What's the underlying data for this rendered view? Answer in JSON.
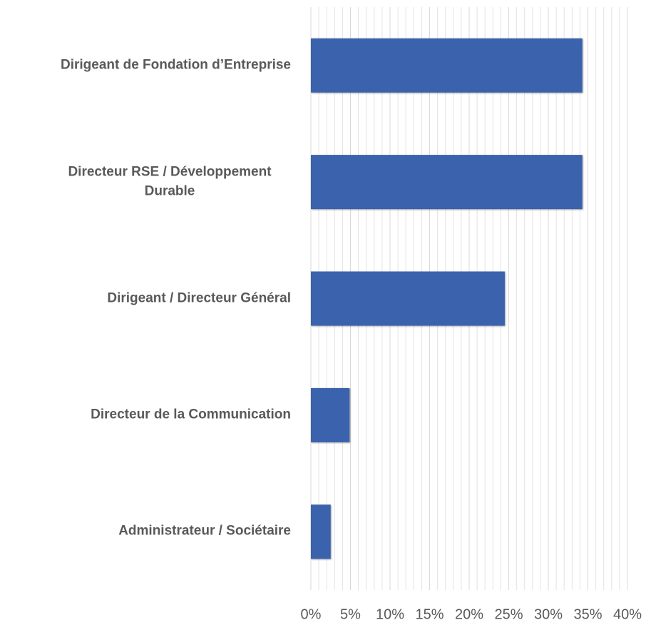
{
  "chart_data": {
    "type": "hbar",
    "categories": [
      "Dirigeant de Fondation d’Entreprise",
      "Directeur RSE / Développement Durable",
      "Dirigeant / Directeur Général",
      "Directeur de la Communication",
      "Administrateur / Sociétaire"
    ],
    "values": [
      34.3,
      34.3,
      24.5,
      4.9,
      2.5
    ],
    "color": "#3a62ad",
    "xlim": [
      0,
      40
    ],
    "xticks": [
      {
        "value": 0,
        "label": "0%"
      },
      {
        "value": 5,
        "label": "5%"
      },
      {
        "value": 10,
        "label": "10%"
      },
      {
        "value": 15,
        "label": "15%"
      },
      {
        "value": 20,
        "label": "20%"
      },
      {
        "value": 25,
        "label": "25%"
      },
      {
        "value": 30,
        "label": "30%"
      },
      {
        "value": 35,
        "label": "35%"
      },
      {
        "value": 40,
        "label": "40%"
      }
    ],
    "grid": true,
    "minor_grid_step": 1
  }
}
